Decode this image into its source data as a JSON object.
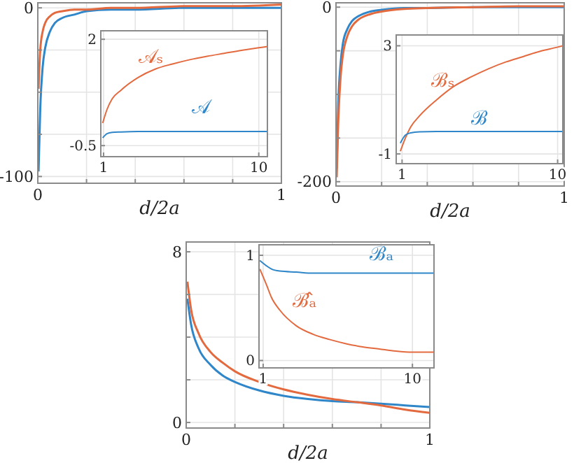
{
  "chart_data": [
    {
      "type": "line",
      "xlabel": "d/2a",
      "xlim": [
        0,
        1
      ],
      "ylim": [
        -104,
        3
      ],
      "xticks": [
        0,
        {
          "value": 0.2,
          "label": null
        },
        {
          "value": 0.4,
          "label": null
        },
        {
          "value": 0.6,
          "label": null
        },
        {
          "value": 0.8,
          "label": null
        },
        1
      ],
      "yticks": [
        -100,
        {
          "value": -75,
          "label": null
        },
        {
          "value": -50,
          "label": null
        },
        {
          "value": -25,
          "label": null
        },
        0
      ],
      "grid": true,
      "x": [
        0.003,
        0.01,
        0.02,
        0.03,
        0.05,
        0.07,
        0.1,
        0.15,
        0.2,
        0.3,
        0.4,
        0.6,
        0.8,
        1
      ],
      "series": [
        {
          "color": "#2f86c8",
          "values": [
            -97,
            -60,
            -35,
            -24,
            -14,
            -9,
            -6,
            -4,
            -2,
            -1,
            -1,
            0,
            0,
            0
          ]
        },
        {
          "color": "#e36a3f",
          "values": [
            -48,
            -25,
            -14,
            -9,
            -5,
            -3,
            -2,
            -1,
            -1,
            0,
            0,
            1,
            1,
            2
          ]
        }
      ]
    },
    {
      "type": "line",
      "xlim": [
        0.84,
        10.5
      ],
      "ylim": [
        -0.76,
        2.2
      ],
      "xticks": [
        1,
        10
      ],
      "yticks": [
        -0.5,
        2
      ],
      "grid": true,
      "x": [
        0.95,
        1.2,
        1.5,
        2,
        3,
        4,
        5,
        6,
        7,
        8,
        9,
        10,
        10.5
      ],
      "series": [
        {
          "name": "𝒜ₛ",
          "color": "#e36a3f",
          "values": [
            0.03,
            0.35,
            0.6,
            0.8,
            1.1,
            1.3,
            1.42,
            1.52,
            1.6,
            1.67,
            1.74,
            1.8,
            1.83
          ]
        },
        {
          "name": "𝒜",
          "color": "#2f86c8",
          "values": [
            -0.32,
            -0.22,
            -0.19,
            -0.18,
            -0.17,
            -0.17,
            -0.17,
            -0.17,
            -0.17,
            -0.17,
            -0.17,
            -0.17,
            -0.17
          ]
        }
      ]
    },
    {
      "type": "line",
      "xlabel": "d/2a",
      "xlim": [
        0,
        1
      ],
      "ylim": [
        -205,
        5
      ],
      "xticks": [
        0,
        {
          "value": 0.2,
          "label": null
        },
        {
          "value": 0.4,
          "label": null
        },
        {
          "value": 0.6,
          "label": null
        },
        {
          "value": 0.8,
          "label": null
        },
        1
      ],
      "yticks": [
        -200,
        {
          "value": -150,
          "label": null
        },
        {
          "value": -100,
          "label": null
        },
        {
          "value": -50,
          "label": null
        },
        0
      ],
      "grid": true,
      "x": [
        0.003,
        0.01,
        0.02,
        0.03,
        0.05,
        0.07,
        0.1,
        0.15,
        0.2,
        0.3,
        0.4,
        0.6,
        0.8,
        1
      ],
      "series": [
        {
          "color": "#2f86c8",
          "values": [
            -185,
            -110,
            -65,
            -42,
            -25,
            -16,
            -10,
            -5,
            -3,
            -1,
            -1,
            0,
            0,
            0
          ]
        },
        {
          "color": "#e36a3f",
          "values": [
            -195,
            -130,
            -80,
            -55,
            -33,
            -22,
            -14,
            -8,
            -5,
            -2,
            -1,
            0,
            1,
            1
          ]
        }
      ]
    },
    {
      "type": "line",
      "xlim": [
        0.66,
        10.3
      ],
      "ylim": [
        -1.36,
        3.4
      ],
      "xticks": [
        1,
        10
      ],
      "yticks": [
        -1,
        3
      ],
      "grid": true,
      "x": [
        0.9,
        1.2,
        1.5,
        2,
        3,
        4,
        5,
        6,
        7,
        8,
        9,
        10,
        10.3
      ],
      "series": [
        {
          "name": "ℬₛ",
          "color": "#e36a3f",
          "values": [
            -0.9,
            -0.4,
            0,
            0.4,
            1.0,
            1.5,
            1.85,
            2.15,
            2.4,
            2.6,
            2.8,
            2.95,
            3.0
          ]
        },
        {
          "name": "ℬ",
          "color": "#2f86c8",
          "values": [
            -0.6,
            -0.3,
            -0.22,
            -0.18,
            -0.17,
            -0.17,
            -0.17,
            -0.17,
            -0.17,
            -0.17,
            -0.17,
            -0.17,
            -0.17
          ]
        }
      ]
    },
    {
      "type": "line",
      "xlabel": "d/2a",
      "xlim": [
        0,
        1
      ],
      "ylim": [
        -0.26,
        8.46
      ],
      "xticks": [
        0,
        {
          "value": 0.2,
          "label": null
        },
        {
          "value": 0.4,
          "label": null
        },
        {
          "value": 0.6,
          "label": null
        },
        {
          "value": 0.8,
          "label": null
        },
        1
      ],
      "yticks": [
        0,
        {
          "value": 2,
          "label": null
        },
        {
          "value": 4,
          "label": null
        },
        {
          "value": 6,
          "label": null
        },
        8
      ],
      "grid": true,
      "x": [
        0.005,
        0.02,
        0.05,
        0.1,
        0.15,
        0.2,
        0.3,
        0.4,
        0.5,
        0.6,
        0.7,
        0.8,
        0.9,
        1
      ],
      "series": [
        {
          "color": "#2f86c8",
          "values": [
            5.8,
            4.6,
            3.5,
            2.7,
            2.2,
            1.9,
            1.5,
            1.25,
            1.1,
            1.0,
            0.95,
            0.88,
            0.8,
            0.72
          ]
        },
        {
          "color": "#e36a3f",
          "values": [
            6.6,
            5.3,
            4.2,
            3.3,
            2.8,
            2.4,
            1.9,
            1.55,
            1.3,
            1.1,
            0.95,
            0.8,
            0.6,
            0.45
          ]
        }
      ]
    },
    {
      "type": "line",
      "xlim": [
        0.75,
        11.3
      ],
      "ylim": [
        -0.07,
        1.1
      ],
      "xticks": [
        1,
        10
      ],
      "yticks": [
        0,
        1
      ],
      "grid": true,
      "x": [
        0.8,
        1.2,
        1.5,
        2,
        3,
        4,
        5,
        6,
        7,
        8,
        9,
        10,
        11.3
      ],
      "series": [
        {
          "name": "ℬₐ",
          "color": "#2f86c8",
          "values": [
            0.95,
            0.9,
            0.87,
            0.85,
            0.84,
            0.83,
            0.83,
            0.83,
            0.83,
            0.83,
            0.83,
            0.83,
            0.83
          ]
        },
        {
          "name": "ℬ̂ₐ",
          "color": "#e36a3f",
          "values": [
            0.87,
            0.72,
            0.6,
            0.48,
            0.33,
            0.25,
            0.2,
            0.16,
            0.13,
            0.11,
            0.09,
            0.08,
            0.08
          ]
        }
      ]
    }
  ]
}
